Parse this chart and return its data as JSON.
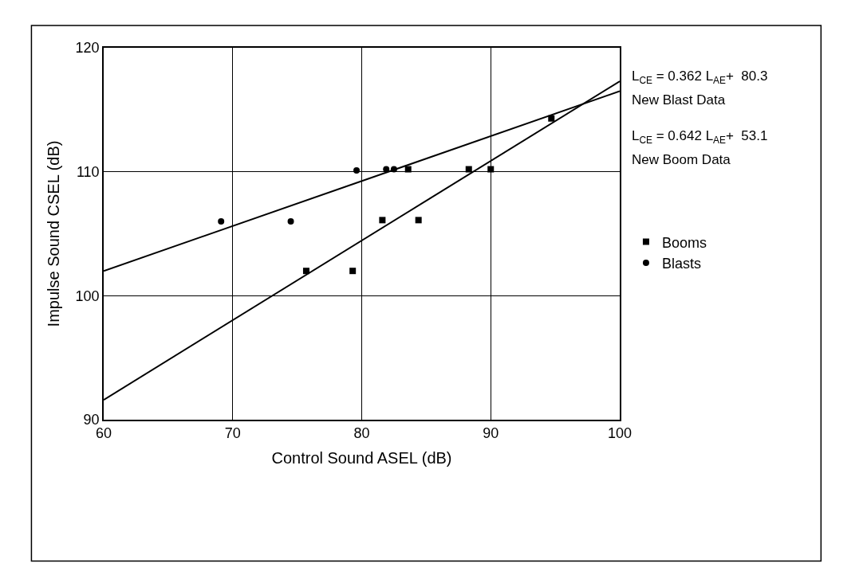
{
  "chart_data": {
    "type": "scatter",
    "xlabel": "Control Sound ASEL (dB)",
    "ylabel": "Impulse Sound CSEL (dB)",
    "xlim": [
      60,
      100
    ],
    "xticks": [
      60,
      70,
      80,
      90,
      100
    ],
    "ylim": [
      90,
      120
    ],
    "yticks": [
      90,
      100,
      110,
      120
    ],
    "grid": true,
    "legend": "right",
    "series": [
      {
        "name": "Booms",
        "color": "#000000",
        "marker": "square",
        "x": [
          75.7,
          79.3,
          81.6,
          83.6,
          84.4,
          88.3,
          90.0,
          94.7
        ],
        "values": [
          102.0,
          102.0,
          106.1,
          110.2,
          106.1,
          110.2,
          110.2,
          114.3
        ]
      },
      {
        "name": "Blasts",
        "color": "#000000",
        "marker": "circle",
        "x": [
          69.1,
          74.5,
          79.6,
          81.9,
          82.5
        ],
        "values": [
          106.0,
          106.0,
          110.1,
          110.2,
          110.2
        ]
      },
      {
        "type": "line",
        "color": "#000000",
        "x": [
          60,
          100
        ],
        "values": [
          102.0,
          116.5
        ]
      },
      {
        "type": "line",
        "color": "#000000",
        "x": [
          60,
          100
        ],
        "values": [
          91.6,
          117.3
        ]
      }
    ],
    "annotations": [
      "L$_{CE}$ = 0.362 L$_{AE}$+  80.3",
      "New Blast Data",
      "L$_{CE}$ = 0.642 L$_{AE}$+  53.1",
      "New Boom Data"
    ]
  }
}
